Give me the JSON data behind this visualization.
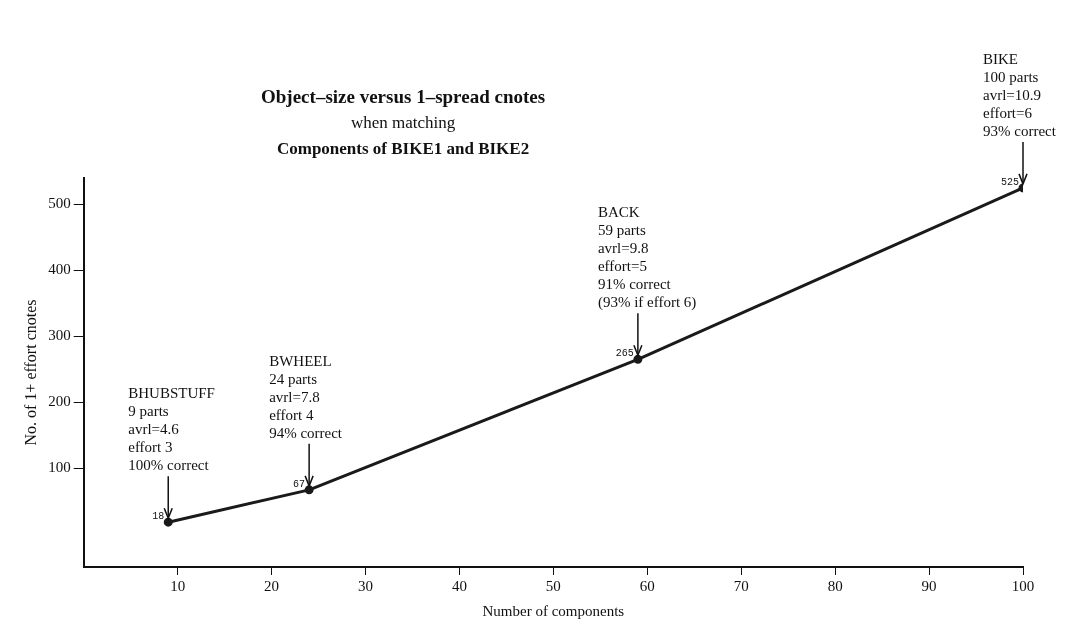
{
  "chart_data": {
    "type": "line",
    "title": "Object–size versus 1–spread cnotes",
    "subtitle": "when matching",
    "annotations": [
      "Components of BIKE1 and BIKE2",
      {
        "text": "BHUBSTUFF\n9 parts\navrl=4.6\neffort 3\n100% correct",
        "x": 9,
        "y": 18
      },
      {
        "text": "BWHEEL\n24 parts\navrl=7.8\neffort 4\n94% correct",
        "x": 24,
        "y": 67
      },
      {
        "text": "BACK\n59 parts\navrl=9.8\neffort=5\n91% correct\n(93% if effort 6)",
        "x": 59,
        "y": 265
      },
      {
        "text": "BIKE\n100 parts\navrl=10.9\neffort=6\n93% correct",
        "x": 100,
        "y": 525
      }
    ],
    "xlabel": "Number of components",
    "ylabel": "No. of 1+ effort cnotes",
    "x": [
      9,
      24,
      59,
      100
    ],
    "series": [
      {
        "color": "#1a1a1a",
        "values": [
          18,
          67,
          265,
          525
        ]
      }
    ],
    "xlim": [
      0,
      100
    ],
    "xticks": [
      10,
      20,
      30,
      40,
      50,
      60,
      70,
      80,
      90,
      100
    ],
    "ylim": [
      -50,
      540
    ],
    "yticks": [
      100,
      200,
      300,
      400,
      500
    ],
    "data_labels": true,
    "marker": "circle",
    "line_style": "solid",
    "grid": false,
    "legend": false
  }
}
